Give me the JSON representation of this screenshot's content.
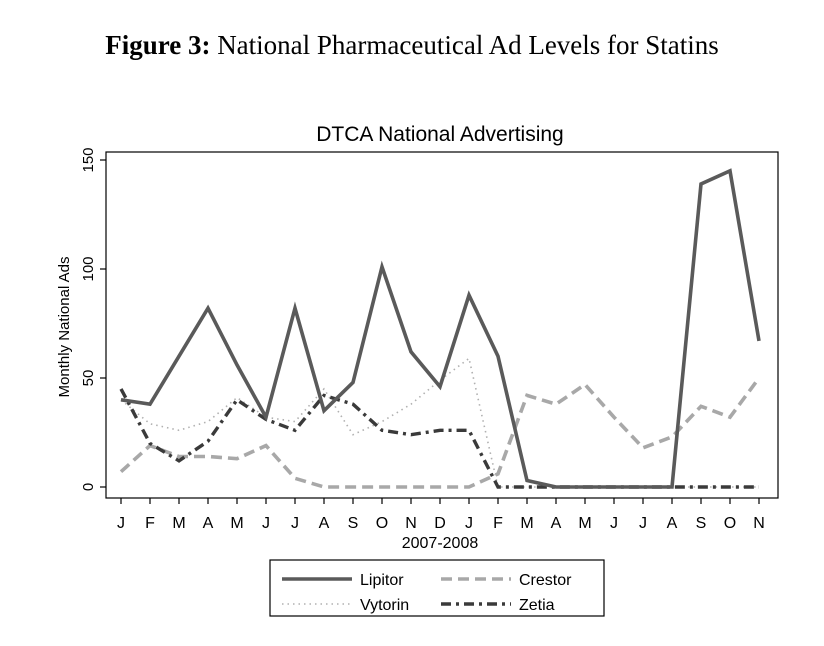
{
  "figure": {
    "label": "Figure 3:",
    "caption": "National Pharmaceutical Ad Levels for Statins"
  },
  "chart_data": {
    "type": "line",
    "title": "DTCA National Advertising",
    "xlabel": "2007-2008",
    "ylabel": "Monthly National Ads",
    "categories": [
      "J",
      "F",
      "M",
      "A",
      "M",
      "J",
      "J",
      "A",
      "S",
      "O",
      "N",
      "D",
      "J",
      "F",
      "M",
      "A",
      "M",
      "J",
      "J",
      "A",
      "S",
      "O",
      "N"
    ],
    "ylim": [
      0,
      150
    ],
    "yticks": [
      0,
      50,
      100,
      150
    ],
    "grid": false,
    "legend_position": "bottom",
    "series": [
      {
        "name": "Lipitor",
        "color": "#5a5a5a",
        "style": "solid",
        "values": [
          40,
          38,
          60,
          82,
          56,
          32,
          82,
          35,
          48,
          101,
          62,
          46,
          88,
          60,
          3,
          0,
          0,
          0,
          0,
          0,
          139,
          145,
          67
        ]
      },
      {
        "name": "Crestor",
        "color": "#a8a8a8",
        "style": "dash",
        "values": [
          7,
          19,
          14,
          14,
          13,
          19,
          4,
          0,
          0,
          0,
          0,
          0,
          0,
          6,
          42,
          38,
          47,
          32,
          18,
          23,
          37,
          32,
          50
        ]
      },
      {
        "name": "Vytorin",
        "color": "#b0b0b0",
        "style": "dot",
        "values": [
          40,
          29,
          26,
          30,
          41,
          32,
          30,
          45,
          24,
          30,
          38,
          49,
          59,
          0,
          0,
          0,
          0,
          0,
          0,
          0,
          0,
          0,
          0
        ]
      },
      {
        "name": "Zetia",
        "color": "#3a3a3a",
        "style": "dashdot",
        "values": [
          45,
          20,
          12,
          21,
          40,
          31,
          26,
          42,
          38,
          26,
          24,
          26,
          26,
          0,
          0,
          0,
          0,
          0,
          0,
          0,
          0,
          0,
          0
        ]
      }
    ]
  }
}
